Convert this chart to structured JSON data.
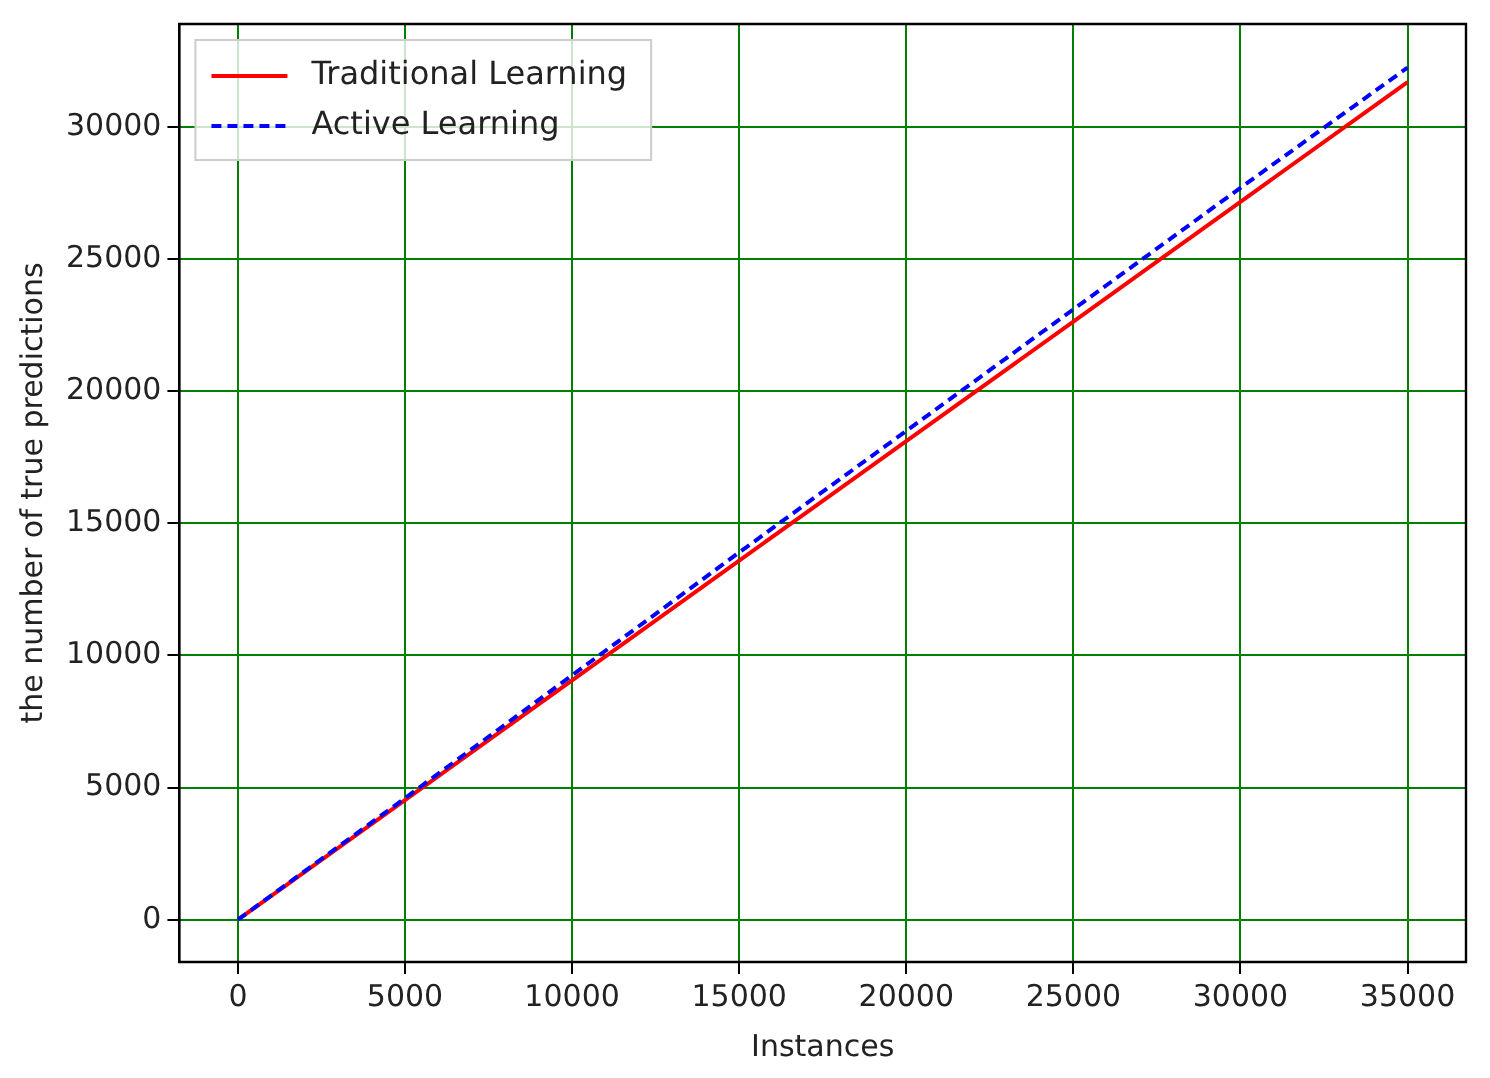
{
  "chart_data": {
    "type": "line",
    "xlabel": "Instances",
    "ylabel": "the number of true predictions",
    "x": [
      0,
      5000,
      10000,
      15000,
      20000,
      25000,
      30000,
      35000
    ],
    "series": [
      {
        "name": "Traditional Learning",
        "color": "#ff0000",
        "line_style": "solid",
        "values": [
          0,
          4530,
          9060,
          13590,
          18110,
          22640,
          27170,
          31700
        ]
      },
      {
        "name": "Active Learning",
        "color": "#0000ff",
        "line_style": "dashed",
        "values": [
          0,
          4600,
          9250,
          13900,
          18500,
          23100,
          27700,
          32250
        ]
      }
    ],
    "xlim": [
      -1750,
      36750
    ],
    "xticks": [
      0,
      5000,
      10000,
      15000,
      20000,
      25000,
      30000,
      35000
    ],
    "ylim": [
      -1600,
      33900
    ],
    "yticks": [
      0,
      5000,
      10000,
      15000,
      20000,
      25000,
      30000
    ],
    "grid": true,
    "legend": "top left",
    "marker": "none"
  }
}
